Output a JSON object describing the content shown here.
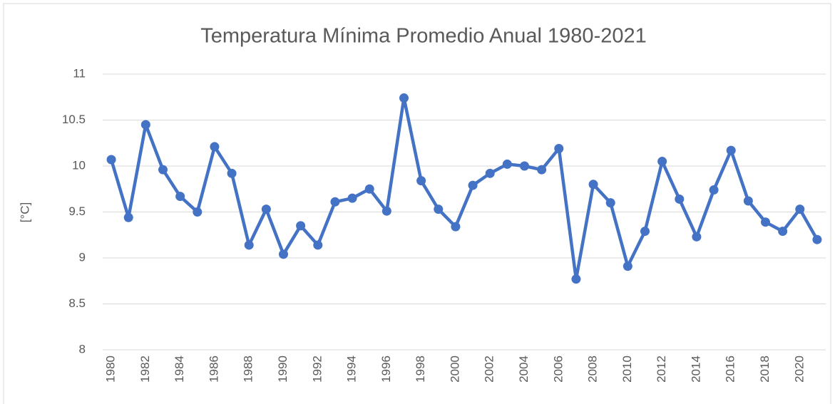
{
  "chart_data": {
    "type": "line",
    "title": "Temperatura Mínima Promedio Anual 1980-2021",
    "y_label": "[°C]",
    "categories": [
      "1980",
      null,
      "1982",
      null,
      "1984",
      null,
      "1986",
      null,
      "1988",
      null,
      "1990",
      null,
      "1992",
      null,
      "1994",
      null,
      "1996",
      null,
      "1998",
      null,
      "2000",
      null,
      "2002",
      null,
      "2004",
      null,
      "2006",
      null,
      "2008",
      null,
      "2010",
      null,
      "2012",
      null,
      "2014",
      null,
      "2016",
      null,
      "2018",
      null,
      "2020",
      null
    ],
    "values": [
      10.07,
      9.44,
      10.45,
      9.96,
      9.67,
      9.5,
      10.21,
      9.92,
      9.14,
      9.53,
      9.04,
      9.35,
      9.14,
      9.61,
      9.65,
      9.75,
      9.51,
      10.74,
      9.84,
      9.53,
      9.34,
      9.79,
      9.92,
      10.02,
      10.0,
      9.96,
      10.19,
      8.77,
      9.8,
      9.6,
      8.91,
      9.29,
      10.05,
      9.64,
      9.23,
      9.74,
      10.17,
      9.62,
      9.39,
      9.29,
      9.53,
      9.2
    ],
    "color": "#4472c4",
    "ylim": [
      8,
      11
    ],
    "yticks": [
      8,
      8.5,
      9,
      9.5,
      10,
      10.5,
      11
    ],
    "grid": true
  }
}
